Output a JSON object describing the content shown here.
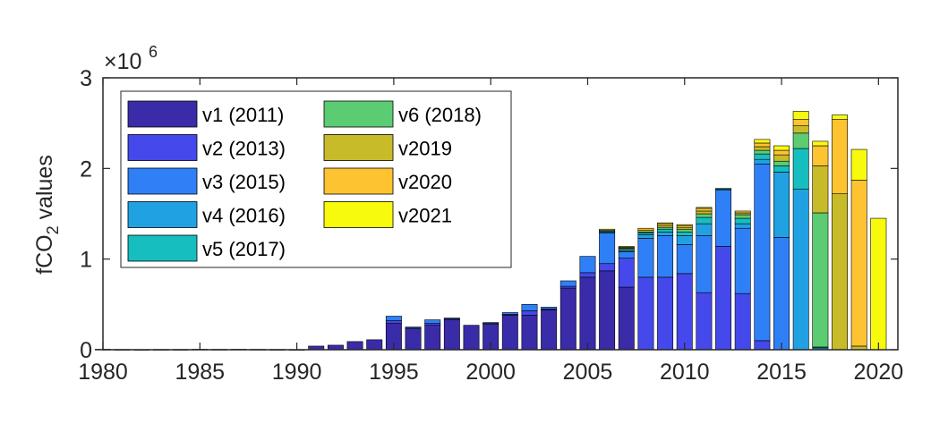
{
  "chart_data": {
    "type": "bar",
    "stacked": true,
    "title": "",
    "xlabel": "",
    "ylabel": "fCO",
    "ylabel_sub": "2",
    "ylabel_suffix": " values",
    "y_exponent": "×10",
    "y_exponent_power": "6",
    "xlim": [
      1980,
      2021
    ],
    "ylim": [
      0,
      3
    ],
    "xticks": [
      "1980",
      "1985",
      "1990",
      "1995",
      "2000",
      "2005",
      "2010",
      "2015",
      "2020"
    ],
    "yticks": [
      "0",
      "1",
      "2",
      "3"
    ],
    "grid": false,
    "legend_position": "top-left",
    "legend_columns": 2,
    "x": [
      1980,
      1981,
      1982,
      1983,
      1984,
      1985,
      1986,
      1987,
      1988,
      1989,
      1990,
      1991,
      1992,
      1993,
      1994,
      1995,
      1996,
      1997,
      1998,
      1999,
      2000,
      2001,
      2002,
      2003,
      2004,
      2005,
      2006,
      2007,
      2008,
      2009,
      2010,
      2011,
      2012,
      2013,
      2014,
      2015,
      2016,
      2017,
      2018,
      2019,
      2020,
      2021
    ],
    "series": [
      {
        "name": "v1 (2011)",
        "color": "#3a2ba8",
        "values": [
          0.005,
          0.003,
          0.002,
          0.003,
          0.003,
          0.005,
          0.004,
          0.005,
          0.004,
          0.003,
          0.002,
          0.04,
          0.05,
          0.09,
          0.11,
          0.29,
          0.23,
          0.27,
          0.33,
          0.27,
          0.28,
          0.38,
          0.38,
          0.44,
          0.68,
          0.8,
          0.87,
          0.69,
          0,
          0,
          0,
          0,
          0,
          0,
          0,
          0,
          0,
          0,
          0,
          0,
          0,
          0
        ]
      },
      {
        "name": "v2 (2013)",
        "color": "#4548ea",
        "values": [
          0,
          0,
          0,
          0,
          0,
          0,
          0,
          0,
          0,
          0,
          0,
          0,
          0,
          0,
          0,
          0.03,
          0.01,
          0.02,
          0.01,
          0,
          0.01,
          0.01,
          0.05,
          0.01,
          0.02,
          0.05,
          0.08,
          0.32,
          0.8,
          0.8,
          0.84,
          0.63,
          1.14,
          0.62,
          0.1,
          0,
          0,
          0,
          0,
          0,
          0,
          0
        ]
      },
      {
        "name": "v3 (2015)",
        "color": "#2f80f6",
        "values": [
          0,
          0,
          0,
          0,
          0,
          0,
          0,
          0,
          0,
          0,
          0,
          0,
          0,
          0,
          0,
          0.05,
          0.01,
          0.04,
          0.01,
          0,
          0.01,
          0.02,
          0.07,
          0.02,
          0.06,
          0.18,
          0.34,
          0.07,
          0.43,
          0.46,
          0.32,
          0.63,
          0.62,
          0.72,
          1.95,
          1.24,
          0,
          0,
          0,
          0,
          0,
          0
        ]
      },
      {
        "name": "v4 (2016)",
        "color": "#20a2e2",
        "values": [
          0,
          0,
          0,
          0,
          0,
          0,
          0,
          0,
          0,
          0,
          0,
          0,
          0,
          0,
          0,
          0,
          0,
          0,
          0,
          0,
          0,
          0,
          0,
          0,
          0,
          0,
          0.01,
          0.01,
          0.04,
          0.04,
          0.1,
          0.13,
          0.01,
          0.05,
          0.05,
          0.72,
          1.77,
          0.02,
          0,
          0,
          0,
          0
        ]
      },
      {
        "name": "v5 (2017)",
        "color": "#17bebf",
        "values": [
          0,
          0,
          0,
          0,
          0,
          0,
          0,
          0,
          0,
          0,
          0,
          0,
          0,
          0,
          0,
          0,
          0,
          0,
          0,
          0,
          0,
          0,
          0,
          0,
          0,
          0,
          0.01,
          0.02,
          0.02,
          0.03,
          0.04,
          0.07,
          0.01,
          0.06,
          0.06,
          0.07,
          0.45,
          0.01,
          0,
          0,
          0,
          0
        ]
      },
      {
        "name": "v6 (2018)",
        "color": "#5bcc72",
        "values": [
          0,
          0,
          0,
          0,
          0,
          0,
          0,
          0,
          0,
          0,
          0,
          0,
          0,
          0,
          0,
          0,
          0,
          0,
          0,
          0,
          0,
          0,
          0,
          0,
          0,
          0,
          0,
          0.01,
          0.01,
          0.02,
          0.03,
          0.04,
          0,
          0.04,
          0.04,
          0.05,
          0.17,
          1.48,
          0,
          0,
          0,
          0
        ]
      },
      {
        "name": "v2019",
        "color": "#c8bb2a",
        "values": [
          0,
          0,
          0,
          0,
          0,
          0,
          0,
          0,
          0,
          0,
          0,
          0,
          0,
          0,
          0,
          0,
          0,
          0,
          0,
          0,
          0,
          0,
          0,
          0,
          0,
          0,
          0,
          0.01,
          0.02,
          0.02,
          0.02,
          0.03,
          0,
          0.02,
          0.04,
          0.07,
          0.08,
          0.52,
          1.72,
          0.04,
          0,
          0
        ]
      },
      {
        "name": "v2020",
        "color": "#fec331",
        "values": [
          0,
          0,
          0,
          0,
          0,
          0,
          0,
          0,
          0,
          0,
          0,
          0,
          0,
          0,
          0,
          0,
          0,
          0,
          0,
          0,
          0,
          0,
          0,
          0,
          0,
          0,
          0.01,
          0.01,
          0.02,
          0.02,
          0.02,
          0.03,
          0,
          0.02,
          0.04,
          0.05,
          0.07,
          0.22,
          0.82,
          1.83,
          0,
          0
        ]
      },
      {
        "name": "v2021",
        "color": "#f8fa0d",
        "values": [
          0,
          0,
          0,
          0,
          0,
          0,
          0,
          0,
          0,
          0,
          0,
          0,
          0,
          0,
          0,
          0,
          0,
          0,
          0,
          0,
          0,
          0,
          0,
          0,
          0,
          0,
          0.01,
          0,
          0,
          0.01,
          0.01,
          0.01,
          0,
          0,
          0.04,
          0.05,
          0.09,
          0.05,
          0.05,
          0.34,
          1.45,
          0
        ]
      }
    ]
  }
}
